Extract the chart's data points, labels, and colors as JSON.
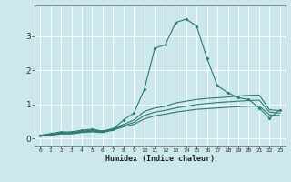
{
  "xlabel": "Humidex (Indice chaleur)",
  "x": [
    0,
    1,
    2,
    3,
    4,
    5,
    6,
    7,
    8,
    9,
    10,
    11,
    12,
    13,
    14,
    15,
    16,
    17,
    18,
    19,
    20,
    21,
    22,
    23
  ],
  "line1": [
    0.1,
    0.15,
    0.2,
    0.2,
    0.25,
    0.28,
    0.22,
    0.28,
    0.55,
    0.75,
    1.45,
    2.65,
    2.75,
    3.4,
    3.5,
    3.3,
    2.35,
    1.55,
    1.35,
    1.2,
    1.15,
    0.9,
    0.6,
    0.85
  ],
  "line2": [
    0.1,
    0.12,
    0.18,
    0.18,
    0.22,
    0.25,
    0.22,
    0.3,
    0.42,
    0.55,
    0.8,
    0.9,
    0.95,
    1.05,
    1.1,
    1.15,
    1.18,
    1.2,
    1.22,
    1.25,
    1.27,
    1.28,
    0.85,
    0.82
  ],
  "line3": [
    0.1,
    0.11,
    0.16,
    0.16,
    0.2,
    0.22,
    0.2,
    0.27,
    0.38,
    0.48,
    0.68,
    0.78,
    0.83,
    0.9,
    0.95,
    1.0,
    1.03,
    1.06,
    1.08,
    1.1,
    1.12,
    1.13,
    0.78,
    0.75
  ],
  "line4": [
    0.1,
    0.1,
    0.14,
    0.14,
    0.18,
    0.2,
    0.18,
    0.25,
    0.35,
    0.42,
    0.58,
    0.67,
    0.72,
    0.78,
    0.82,
    0.86,
    0.88,
    0.9,
    0.92,
    0.94,
    0.95,
    0.96,
    0.7,
    0.68
  ],
  "color": "#2d7a6e",
  "bg_color": "#cce8ec",
  "grid_color": "#ffffff",
  "ylim": [
    -0.2,
    3.9
  ],
  "yticks": [
    0,
    1,
    2,
    3
  ],
  "xlim": [
    -0.5,
    23.5
  ]
}
